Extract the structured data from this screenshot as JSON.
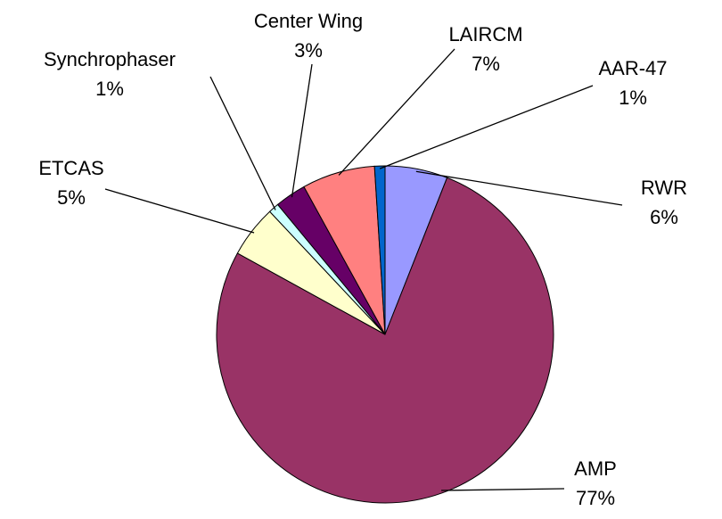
{
  "chart_data": {
    "type": "pie",
    "categories": [
      "RWR",
      "AMP",
      "ETCAS",
      "Synchrophaser",
      "Center Wing",
      "LAIRCM",
      "AAR-47"
    ],
    "values": [
      6,
      77,
      5,
      1,
      3,
      7,
      1
    ],
    "value_labels": [
      "6%",
      "77%",
      "5%",
      "1%",
      "3%",
      "7%",
      "1%"
    ],
    "colors": [
      "#9999ff",
      "#993366",
      "#ffffcc",
      "#ccffff",
      "#660066",
      "#ff8080",
      "#0066cc"
    ]
  }
}
